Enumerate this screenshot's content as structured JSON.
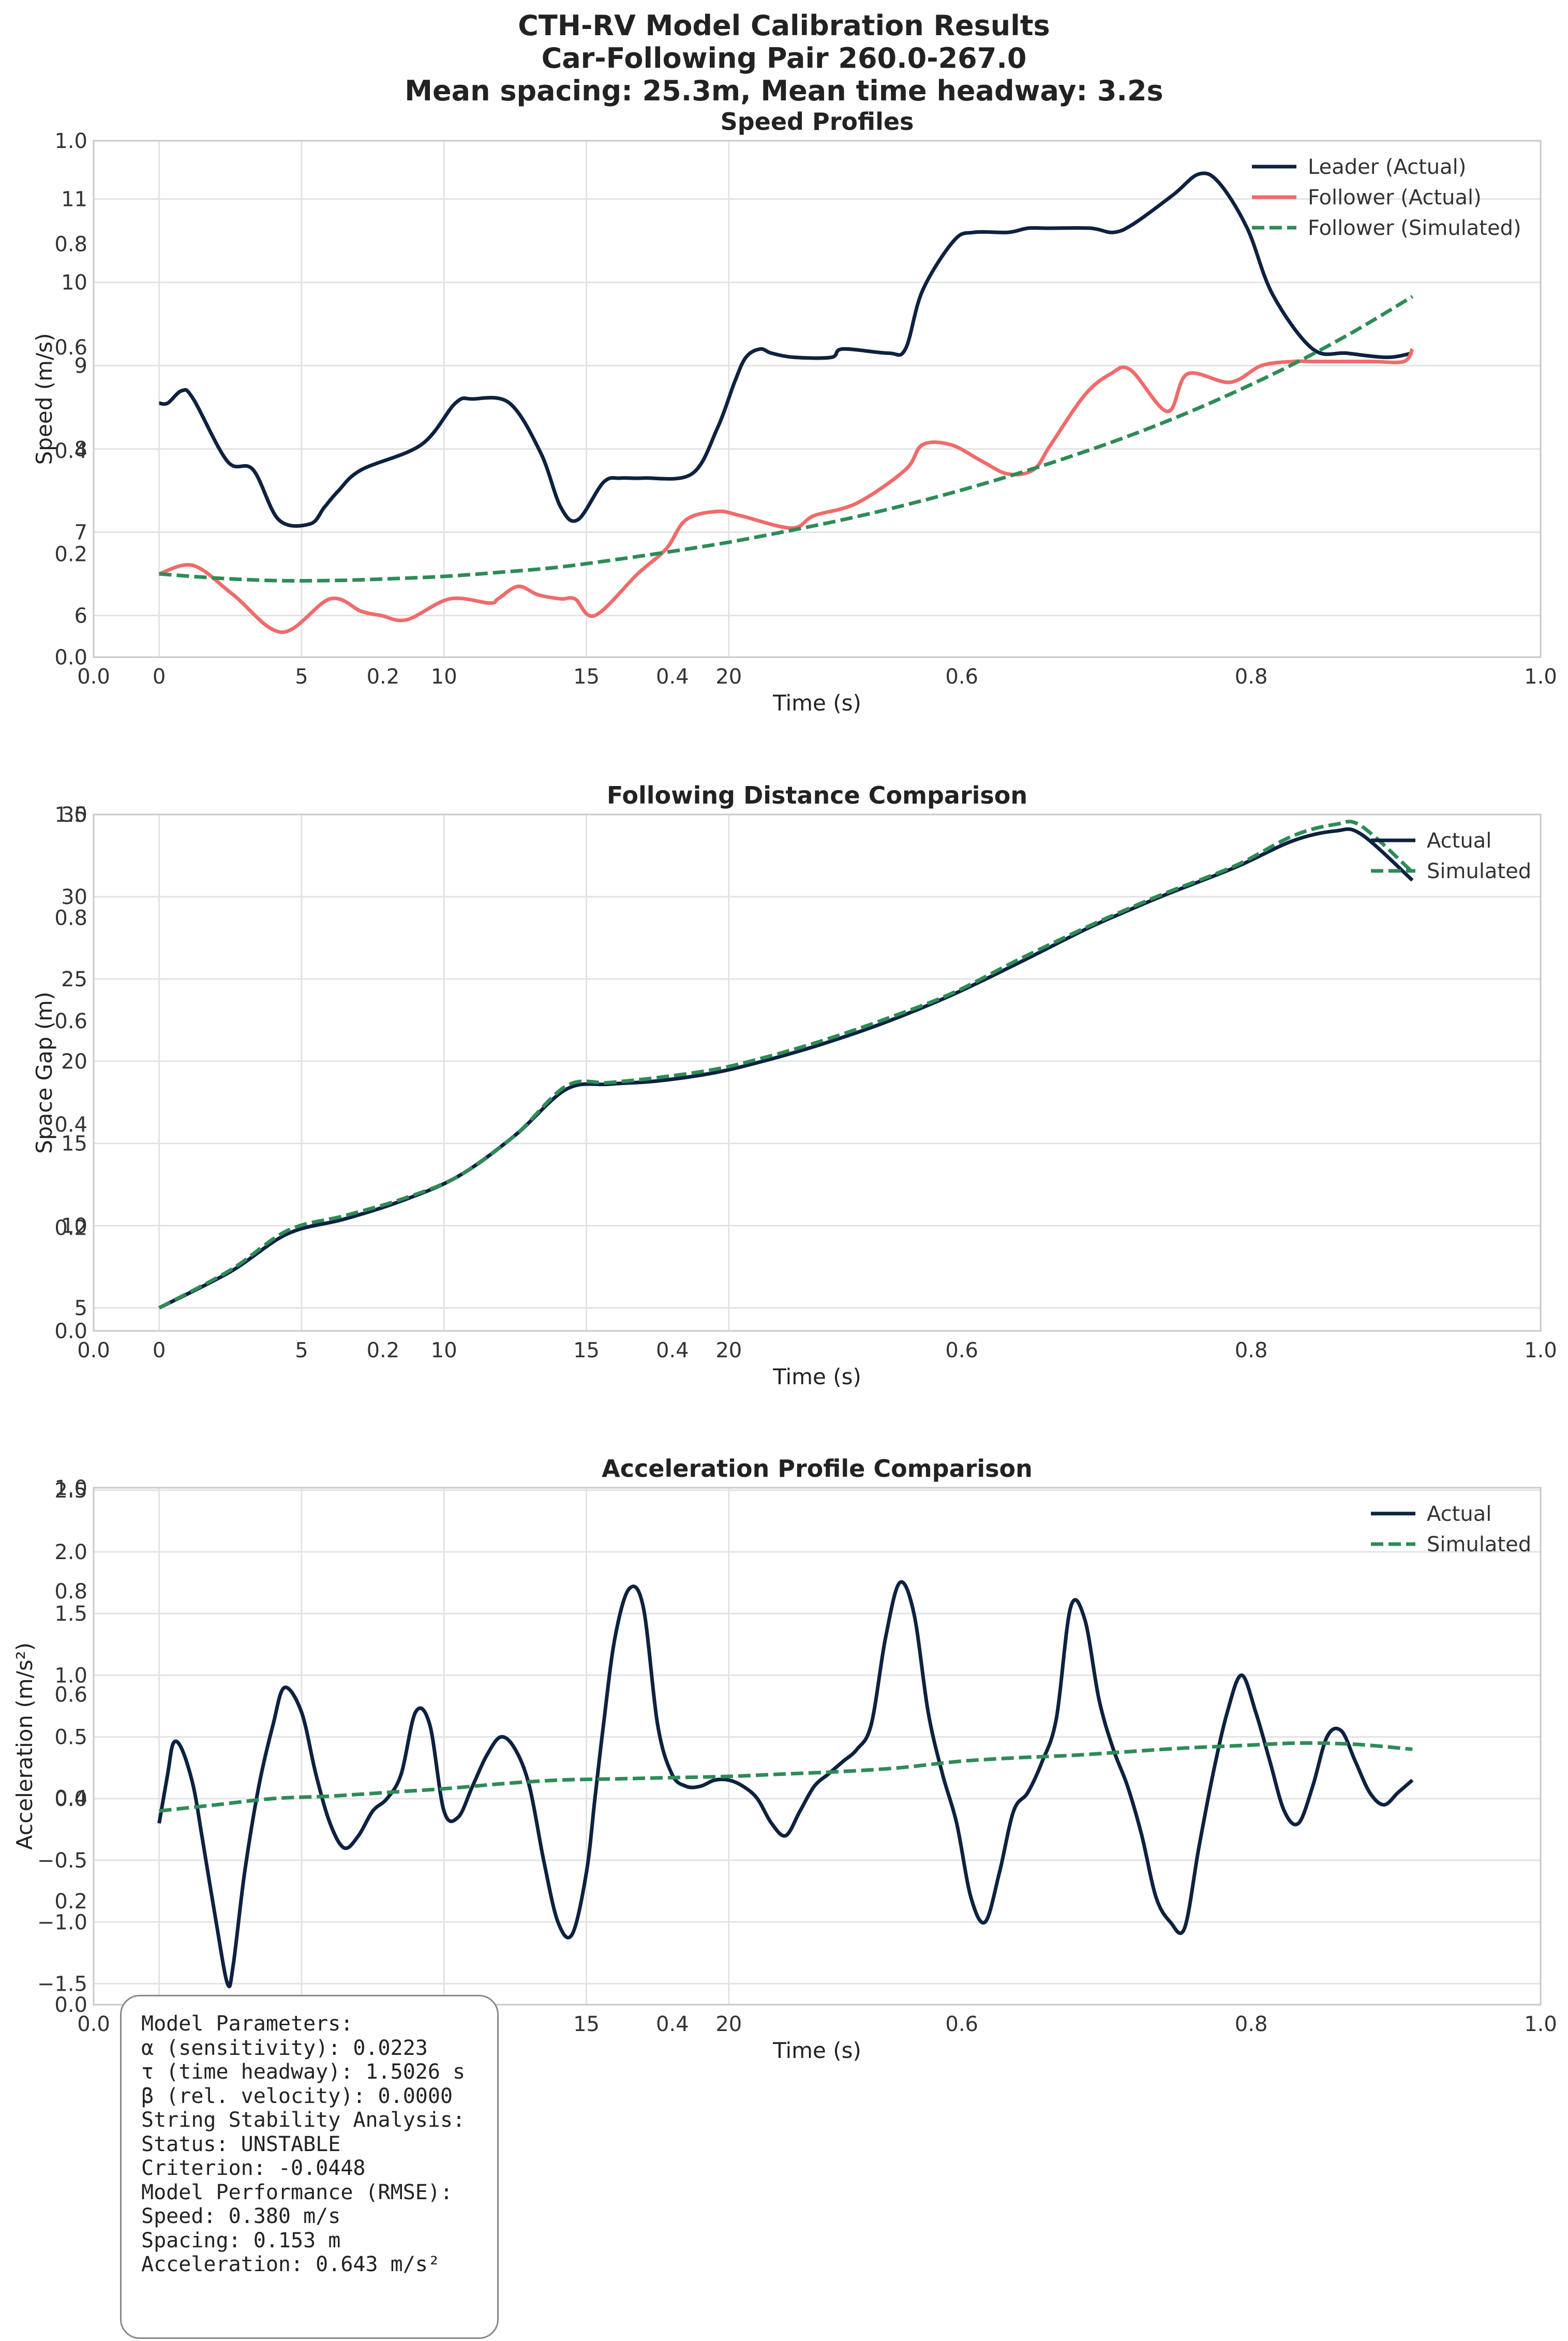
{
  "suptitle": {
    "line1": "CTH-RV Model Calibration Results",
    "line2": "Car-Following Pair 260.0-267.0",
    "line3": "Mean spacing: 25.3m, Mean time headway: 3.2s"
  },
  "colors": {
    "leader": "#0d2240",
    "follower": "#f06b6b",
    "simulated": "#2e8b57",
    "grid": "#e3e3e3",
    "spine": "#c8c8c8"
  },
  "chart_data": [
    {
      "type": "line",
      "title": "Speed Profiles",
      "xlabel": "Time (s)",
      "ylabel": "Speed (m/s)",
      "xlim": [
        -2.3,
        48.5
      ],
      "ylim": [
        5.5,
        11.7
      ],
      "xticks": [
        0,
        5,
        10,
        15,
        20
      ],
      "yticks": [
        6,
        7,
        8,
        9,
        10,
        11
      ],
      "overlay_ticks": {
        "x": [
          "0.0",
          "0.2",
          "0.4",
          "0.6",
          "0.8",
          "1.0"
        ],
        "y": [
          "0.0",
          "0.2",
          "0.4",
          "0.6",
          "0.8",
          "1.0"
        ]
      },
      "legend_position": "top-right",
      "series": [
        {
          "name": "Leader (Actual)",
          "color_key": "leader",
          "style": "solid",
          "x": [
            0,
            0.3,
            0.8,
            1.2,
            2.4,
            3.3,
            4.2,
            5.3,
            5.8,
            6.3,
            7.1,
            9.2,
            10.4,
            11,
            12.3,
            13.4,
            14.1,
            14.7,
            15.6,
            16.2,
            17,
            18.7,
            19.6,
            20.2,
            20.6,
            21.1,
            21.5,
            22.3,
            23.6,
            24,
            25.6,
            26.2,
            26.8,
            27.9,
            28.6,
            29.8,
            30.5,
            31.2,
            32.7,
            33.5,
            34.2,
            35.6,
            36.5,
            37.2,
            38.2,
            39.1,
            40.5,
            41.7,
            43.1,
            44
          ],
          "y": [
            8.55,
            8.55,
            8.7,
            8.6,
            7.85,
            7.75,
            7.15,
            7.1,
            7.3,
            7.5,
            7.75,
            8.05,
            8.55,
            8.6,
            8.55,
            7.95,
            7.3,
            7.15,
            7.6,
            7.65,
            7.65,
            7.7,
            8.25,
            8.8,
            9.1,
            9.2,
            9.15,
            9.1,
            9.1,
            9.2,
            9.15,
            9.2,
            9.9,
            10.5,
            10.6,
            10.6,
            10.65,
            10.65,
            10.65,
            10.6,
            10.7,
            11.05,
            11.3,
            11.2,
            10.65,
            9.85,
            9.2,
            9.15,
            9.1,
            9.15
          ]
        },
        {
          "name": "Follower (Actual)",
          "color_key": "follower",
          "style": "solid",
          "x": [
            0,
            1.2,
            2.6,
            4.3,
            6,
            7.1,
            7.8,
            8.7,
            10.2,
            11.6,
            11.9,
            12.6,
            13.3,
            14.1,
            14.6,
            15.3,
            16.8,
            17.8,
            18.5,
            19.6,
            20.4,
            22.2,
            23,
            24.5,
            26.2,
            26.8,
            27.8,
            28.9,
            29.8,
            30.7,
            31.3,
            32.5,
            33.4,
            34.1,
            35.4,
            36.1,
            37.6,
            38.7,
            39.8,
            40.5,
            41.3,
            41.6,
            42.6,
            43.7,
            44
          ],
          "y": [
            6.5,
            6.6,
            6.25,
            5.8,
            6.2,
            6.05,
            6.0,
            5.95,
            6.2,
            6.15,
            6.2,
            6.35,
            6.25,
            6.2,
            6.2,
            6.0,
            6.5,
            6.8,
            7.15,
            7.25,
            7.2,
            7.05,
            7.2,
            7.35,
            7.75,
            8.05,
            8.05,
            7.85,
            7.7,
            7.75,
            8.05,
            8.65,
            8.9,
            8.95,
            8.45,
            8.9,
            8.8,
            9.0,
            9.05,
            9.05,
            9.05,
            9.05,
            9.05,
            9.05,
            9.2
          ]
        },
        {
          "name": "Follower (Simulated)",
          "color_key": "simulated",
          "style": "dashed",
          "x": [
            0,
            2,
            4,
            6,
            8,
            10,
            12,
            14,
            16,
            18,
            20,
            22,
            24,
            26,
            28,
            30,
            32,
            34,
            36,
            38,
            40,
            42,
            44
          ],
          "y": [
            6.5,
            6.45,
            6.42,
            6.42,
            6.44,
            6.47,
            6.52,
            6.58,
            6.67,
            6.77,
            6.88,
            7.01,
            7.15,
            7.31,
            7.49,
            7.69,
            7.91,
            8.15,
            8.42,
            8.72,
            9.05,
            9.42,
            9.83
          ]
        }
      ]
    },
    {
      "type": "line",
      "title": "Following Distance Comparison",
      "xlabel": "Time (s)",
      "ylabel": "Space Gap (m)",
      "xlim": [
        -2.3,
        48.5
      ],
      "ylim": [
        3.6,
        35.0
      ],
      "xticks": [
        0,
        5,
        10,
        15,
        20
      ],
      "yticks": [
        5,
        10,
        15,
        20,
        25,
        30,
        35
      ],
      "overlay_ticks": {
        "x": [
          "0.0",
          "0.2",
          "0.4",
          "0.6",
          "0.8",
          "1.0"
        ],
        "y": [
          "0.0",
          "0.2",
          "0.4",
          "0.6",
          "0.8",
          "1.0"
        ]
      },
      "legend_position": "top-right",
      "series": [
        {
          "name": "Actual",
          "color_key": "leader",
          "style": "solid",
          "x": [
            0,
            2.5,
            4.5,
            6.5,
            8.5,
            10.5,
            12.5,
            14.3,
            15.8,
            17.5,
            19.5,
            21.2,
            23.2,
            25.4,
            27.8,
            30.2,
            32.5,
            33.8,
            35.3,
            37.8,
            39.8,
            41.3,
            42.2,
            44
          ],
          "y": [
            5.0,
            7.2,
            9.5,
            10.4,
            11.5,
            13.0,
            15.5,
            18.3,
            18.6,
            18.8,
            19.3,
            20.0,
            21.0,
            22.3,
            24.0,
            26.0,
            28.0,
            29.0,
            30.1,
            31.8,
            33.4,
            34.0,
            33.8,
            31.0
          ]
        },
        {
          "name": "Simulated",
          "color_key": "simulated",
          "style": "dashed",
          "x": [
            0,
            2.5,
            4.5,
            6.5,
            8.5,
            10.5,
            12.5,
            14.3,
            15.8,
            17.5,
            19.5,
            21.2,
            23.2,
            25.4,
            27.8,
            30.2,
            32.5,
            33.8,
            35.3,
            37.8,
            39.8,
            41.3,
            42.2,
            44
          ],
          "y": [
            5.0,
            7.3,
            9.7,
            10.6,
            11.6,
            13.0,
            15.5,
            18.5,
            18.7,
            19.0,
            19.5,
            20.2,
            21.2,
            22.5,
            24.1,
            26.2,
            28.1,
            29.1,
            30.2,
            31.9,
            33.7,
            34.4,
            34.3,
            31.5
          ]
        }
      ]
    },
    {
      "type": "line",
      "title": "Acceleration Profile Comparison",
      "xlabel": "Time (s)",
      "ylabel": "Acceleration (m/s²)",
      "xlim": [
        -2.3,
        48.5
      ],
      "ylim": [
        -1.67,
        2.52
      ],
      "xticks": [
        0,
        5,
        10,
        15,
        20
      ],
      "yticks": [
        -1.5,
        -1.0,
        -0.5,
        0.0,
        0.5,
        1.0,
        1.5,
        2.0,
        2.5
      ],
      "ytick_labels": [
        "−1.5",
        "−1.0",
        "−0.5",
        "0.0",
        "0.5",
        "1.0",
        "1.5",
        "2.0",
        "2.5"
      ],
      "overlay_ticks": {
        "x": [
          "0.0",
          "0.2",
          "0.4",
          "0.6",
          "0.8",
          "1.0"
        ],
        "y": [
          "0.0",
          "0.2",
          "0.4",
          "0.6",
          "0.8",
          "1.0"
        ]
      },
      "legend_position": "top-right",
      "series": [
        {
          "name": "Actual",
          "color_key": "leader",
          "style": "solid",
          "x": [
            0,
            0.3,
            0.5,
            0.8,
            1.2,
            1.5,
            2.0,
            2.4,
            2.6,
            3.0,
            3.5,
            4.0,
            4.4,
            5.0,
            5.5,
            6.0,
            6.5,
            7.0,
            7.5,
            8.0,
            8.5,
            9.0,
            9.5,
            10.0,
            10.5,
            11.0,
            11.5,
            12.0,
            12.5,
            13.0,
            13.5,
            14.0,
            14.5,
            15.0,
            15.3,
            15.6,
            16.0,
            16.5,
            17.0,
            17.5,
            18.0,
            18.5,
            19.0,
            19.5,
            20.0,
            20.5,
            21.0,
            21.5,
            22.0,
            22.5,
            23.0,
            23.5,
            24.0,
            24.5,
            25.0,
            25.5,
            26.0,
            26.5,
            27.0,
            27.5,
            28.0,
            28.5,
            29.0,
            29.5,
            30.0,
            30.5,
            31.0,
            31.5,
            32.0,
            32.5,
            33.0,
            33.5,
            34.0,
            34.5,
            35.0,
            35.5,
            36.0,
            36.5,
            37.0,
            37.5,
            38.0,
            38.5,
            39.0,
            39.5,
            40.0,
            40.5,
            41.0,
            41.5,
            42.0,
            42.5,
            43.0,
            43.5,
            44.0
          ],
          "y": [
            -0.2,
            0.2,
            0.45,
            0.4,
            0.1,
            -0.3,
            -1.0,
            -1.5,
            -1.35,
            -0.6,
            0.1,
            0.6,
            0.9,
            0.7,
            0.2,
            -0.2,
            -0.4,
            -0.3,
            -0.1,
            0.0,
            0.2,
            0.7,
            0.6,
            -0.1,
            -0.15,
            0.1,
            0.35,
            0.5,
            0.4,
            0.1,
            -0.5,
            -1.0,
            -1.1,
            -0.6,
            0.0,
            0.6,
            1.3,
            1.7,
            1.55,
            0.6,
            0.2,
            0.1,
            0.1,
            0.15,
            0.15,
            0.1,
            0.0,
            -0.2,
            -0.3,
            -0.1,
            0.1,
            0.2,
            0.3,
            0.4,
            0.6,
            1.3,
            1.75,
            1.5,
            0.7,
            0.2,
            -0.2,
            -0.8,
            -1.0,
            -0.6,
            -0.1,
            0.05,
            0.3,
            0.65,
            1.55,
            1.45,
            0.8,
            0.4,
            0.1,
            -0.3,
            -0.8,
            -1.0,
            -1.05,
            -0.4,
            0.2,
            0.7,
            1.0,
            0.7,
            0.3,
            -0.1,
            -0.2,
            0.1,
            0.5,
            0.55,
            0.3,
            0.05,
            -0.05,
            0.05,
            0.15
          ]
        },
        {
          "name": "Simulated",
          "color_key": "simulated",
          "style": "dashed",
          "x": [
            0,
            2,
            4,
            6,
            8,
            10,
            12,
            14,
            16,
            18,
            20,
            22,
            24,
            26,
            28,
            30,
            32,
            34,
            36,
            38,
            40,
            42,
            44
          ],
          "y": [
            -0.1,
            -0.05,
            0.0,
            0.02,
            0.05,
            0.08,
            0.12,
            0.15,
            0.16,
            0.17,
            0.18,
            0.2,
            0.22,
            0.25,
            0.3,
            0.33,
            0.35,
            0.38,
            0.41,
            0.43,
            0.45,
            0.44,
            0.4
          ]
        }
      ]
    }
  ],
  "stats_box": {
    "lines": [
      "Model Parameters:",
      "α (sensitivity): 0.0223",
      "τ (time headway): 1.5026 s",
      "β (rel. velocity): 0.0000",
      "",
      "String Stability Analysis:",
      "Status: UNSTABLE",
      "Criterion: -0.0448",
      "",
      "Model Performance (RMSE):",
      "Speed: 0.380 m/s",
      "Spacing: 0.153 m",
      "Acceleration: 0.643 m/s²"
    ]
  }
}
